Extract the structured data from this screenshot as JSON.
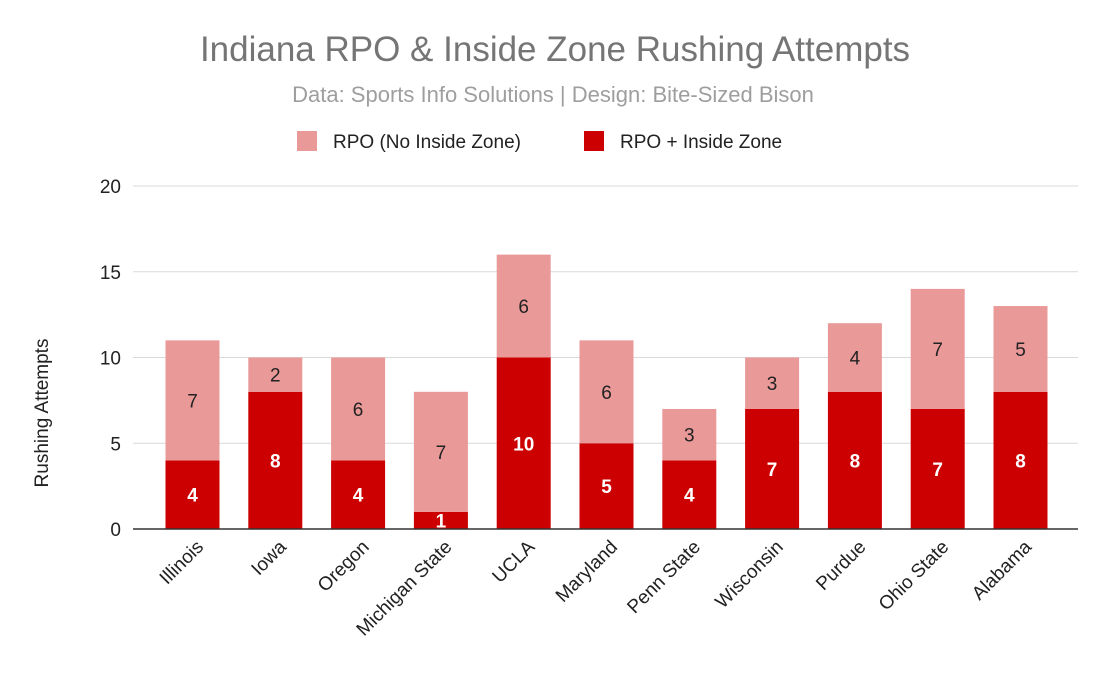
{
  "chart_data": {
    "type": "bar",
    "stacked": true,
    "title": "Indiana RPO & Inside Zone Rushing Attempts",
    "subtitle": "Data: Sports Info Solutions | Design: Bite-Sized Bison",
    "xlabel": "",
    "ylabel": "Rushing Attempts",
    "ylim": [
      0,
      20
    ],
    "yticks": [
      0,
      5,
      10,
      15,
      20
    ],
    "grid": true,
    "legend_position": "top",
    "categories": [
      "Illinois",
      "Iowa",
      "Oregon",
      "Michigan State",
      "UCLA",
      "Maryland",
      "Penn State",
      "Wisconsin",
      "Purdue",
      "Ohio State",
      "Alabama"
    ],
    "series": [
      {
        "name": "RPO + Inside Zone",
        "color": "#cc0000",
        "label_color": "#ffffff",
        "values": [
          4,
          8,
          4,
          1,
          10,
          5,
          4,
          7,
          8,
          7,
          8
        ]
      },
      {
        "name": "RPO (No Inside Zone)",
        "color": "#ea9999",
        "label_color": "#222222",
        "values": [
          7,
          2,
          6,
          7,
          6,
          6,
          3,
          3,
          4,
          7,
          5
        ]
      }
    ],
    "legend_order": [
      "RPO (No Inside Zone)",
      "RPO + Inside Zone"
    ]
  }
}
